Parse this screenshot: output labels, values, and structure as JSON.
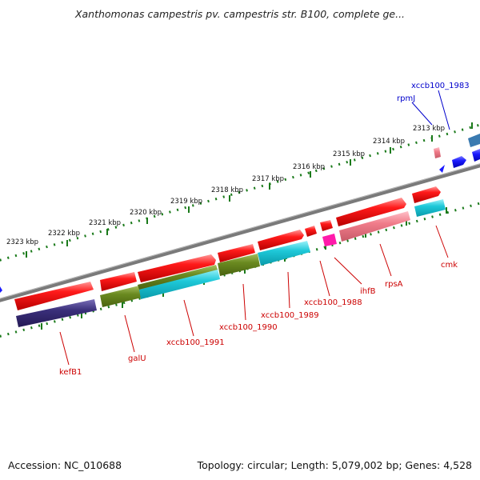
{
  "title": "Xanthomonas campestris pv. campestris str. B100, complete ge...",
  "footer": {
    "accession": "Accession: NC_010688",
    "info": "Topology: circular; Length: 5,079,002 bp; Genes: 4,528"
  },
  "scale_labels": [
    "2313 kbp",
    "2314 kbp",
    "2315 kbp",
    "2316 kbp",
    "2317 kbp",
    "2318 kbp",
    "2319 kbp",
    "2320 kbp",
    "2321 kbp",
    "2322 kbp",
    "2323 kbp"
  ],
  "genes_reverse": [
    "kefB1",
    "galU",
    "xccb100_1991",
    "xccb100_1990",
    "xccb100_1989",
    "xccb100_1988",
    "ihfB",
    "rpsA",
    "cmk"
  ],
  "genes_forward": [
    "xccb100_1983",
    "rpmJ"
  ],
  "colors": {
    "cds_red": "#ff1a1a",
    "dark_navy": "#3a2f7a",
    "olive": "#6a8a20",
    "cyan": "#1ec8d8",
    "pink": "#f07c8a",
    "magenta": "#ff1aaa",
    "blue": "#1a1aff",
    "steel_blue": "#3a7ab0",
    "backbone": "#808080",
    "ruler": "#1a7a1a"
  }
}
